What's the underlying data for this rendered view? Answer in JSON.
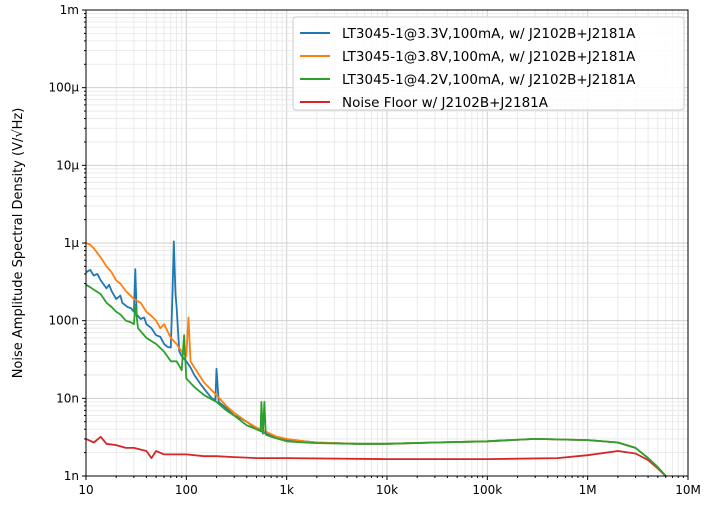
{
  "chart_data": {
    "type": "line",
    "title": "",
    "xlabel": "",
    "ylabel": "Noise Amplitude Spectral Density (V/√Hz)",
    "xscale": "log",
    "yscale": "log",
    "xlim": [
      10,
      10000000
    ],
    "ylim": [
      1e-09,
      0.001
    ],
    "grid": "major and minor",
    "legend_position": "top-right",
    "x_ticks": [
      {
        "value": 10,
        "label": "10"
      },
      {
        "value": 100,
        "label": "100"
      },
      {
        "value": 1000,
        "label": "1k"
      },
      {
        "value": 10000,
        "label": "10k"
      },
      {
        "value": 100000,
        "label": "100k"
      },
      {
        "value": 1000000,
        "label": "1M"
      },
      {
        "value": 10000000,
        "label": "10M"
      }
    ],
    "y_ticks": [
      {
        "value": 1e-09,
        "label": "1n"
      },
      {
        "value": 1e-08,
        "label": "10n"
      },
      {
        "value": 1e-07,
        "label": "100n"
      },
      {
        "value": 1e-06,
        "label": "1µ"
      },
      {
        "value": 1e-05,
        "label": "10µ"
      },
      {
        "value": 0.0001,
        "label": "100µ"
      },
      {
        "value": 0.001,
        "label": "1m"
      }
    ],
    "series": [
      {
        "name": "LT3045-1@3.3V,100mA, w/ J2102B+J2181A",
        "color": "#1f77b4",
        "points": [
          [
            10,
            4.2e-07
          ],
          [
            11,
            4.5e-07
          ],
          [
            12,
            3.8e-07
          ],
          [
            13,
            4e-07
          ],
          [
            14,
            3.3e-07
          ],
          [
            16,
            2.6e-07
          ],
          [
            17,
            2.9e-07
          ],
          [
            18,
            2.4e-07
          ],
          [
            20,
            1.9e-07
          ],
          [
            22,
            2.1e-07
          ],
          [
            23,
            1.7e-07
          ],
          [
            26,
            1.5e-07
          ],
          [
            28,
            1.45e-07
          ],
          [
            30,
            1.3e-07
          ],
          [
            31,
            4.6e-07
          ],
          [
            32,
            1.2e-07
          ],
          [
            35,
            1.05e-07
          ],
          [
            38,
            1.1e-07
          ],
          [
            40,
            9e-08
          ],
          [
            45,
            8e-08
          ],
          [
            50,
            6.5e-08
          ],
          [
            55,
            6.2e-08
          ],
          [
            60,
            5e-08
          ],
          [
            65,
            4.6e-08
          ],
          [
            70,
            4.5e-08
          ],
          [
            73,
            2.5e-07
          ],
          [
            75,
            1.05e-06
          ],
          [
            78,
            2.2e-07
          ],
          [
            80,
            1.5e-07
          ],
          [
            85,
            4e-08
          ],
          [
            90,
            3.5e-08
          ],
          [
            100,
            3e-08
          ],
          [
            110,
            2.5e-08
          ],
          [
            120,
            2e-08
          ],
          [
            140,
            1.5e-08
          ],
          [
            160,
            1.2e-08
          ],
          [
            180,
            1e-08
          ],
          [
            195,
            9.5e-09
          ],
          [
            200,
            2.4e-08
          ],
          [
            210,
            9e-09
          ],
          [
            250,
            7.5e-09
          ],
          [
            300,
            6e-09
          ],
          [
            350,
            5.5e-09
          ],
          [
            400,
            5e-09
          ],
          [
            500,
            4e-09
          ],
          [
            600,
            3.6e-09
          ],
          [
            700,
            3.3e-09
          ],
          [
            800,
            3.1e-09
          ],
          [
            1000,
            2.9e-09
          ],
          [
            1500,
            2.8e-09
          ],
          [
            2000,
            2.7e-09
          ],
          [
            5000,
            2.6e-09
          ],
          [
            10000,
            2.6e-09
          ],
          [
            30000,
            2.7e-09
          ],
          [
            100000,
            2.8e-09
          ],
          [
            300000,
            3e-09
          ],
          [
            1000000,
            2.9e-09
          ],
          [
            2000000,
            2.7e-09
          ],
          [
            3000000,
            2.3e-09
          ],
          [
            4000000,
            1.7e-09
          ],
          [
            5000000,
            1.3e-09
          ],
          [
            6000000,
            1e-09
          ]
        ]
      },
      {
        "name": "LT3045-1@3.8V,100mA, w/ J2102B+J2181A",
        "color": "#ff7f0e",
        "points": [
          [
            10,
            1e-06
          ],
          [
            11,
            9.5e-07
          ],
          [
            12,
            8.5e-07
          ],
          [
            14,
            6.5e-07
          ],
          [
            16,
            5e-07
          ],
          [
            18,
            4.2e-07
          ],
          [
            20,
            3.3e-07
          ],
          [
            22,
            3e-07
          ],
          [
            25,
            2.4e-07
          ],
          [
            30,
            1.9e-07
          ],
          [
            35,
            1.7e-07
          ],
          [
            40,
            1.3e-07
          ],
          [
            45,
            1.15e-07
          ],
          [
            50,
            1e-07
          ],
          [
            55,
            8e-08
          ],
          [
            60,
            9e-08
          ],
          [
            70,
            6e-08
          ],
          [
            80,
            5e-08
          ],
          [
            90,
            4e-08
          ],
          [
            100,
            3.5e-08
          ],
          [
            105,
            1.1e-07
          ],
          [
            110,
            3e-08
          ],
          [
            120,
            2.5e-08
          ],
          [
            150,
            1.6e-08
          ],
          [
            200,
            1.1e-08
          ],
          [
            250,
            8e-09
          ],
          [
            300,
            6.5e-09
          ],
          [
            400,
            5e-09
          ],
          [
            500,
            4.2e-09
          ],
          [
            600,
            3.8e-09
          ],
          [
            800,
            3.2e-09
          ],
          [
            1000,
            3e-09
          ],
          [
            1500,
            2.8e-09
          ],
          [
            2000,
            2.7e-09
          ],
          [
            5000,
            2.6e-09
          ],
          [
            10000,
            2.6e-09
          ],
          [
            30000,
            2.7e-09
          ],
          [
            100000,
            2.8e-09
          ],
          [
            300000,
            3e-09
          ],
          [
            1000000,
            2.9e-09
          ],
          [
            2000000,
            2.7e-09
          ],
          [
            3000000,
            2.3e-09
          ],
          [
            4000000,
            1.7e-09
          ],
          [
            5000000,
            1.3e-09
          ],
          [
            6000000,
            1e-09
          ]
        ]
      },
      {
        "name": "LT3045-1@4.2V,100mA, w/ J2102B+J2181A",
        "color": "#2ca02c",
        "points": [
          [
            10,
            2.9e-07
          ],
          [
            11,
            2.7e-07
          ],
          [
            12,
            2.5e-07
          ],
          [
            14,
            2.2e-07
          ],
          [
            16,
            1.7e-07
          ],
          [
            18,
            1.5e-07
          ],
          [
            20,
            1.3e-07
          ],
          [
            22,
            1.2e-07
          ],
          [
            25,
            1e-07
          ],
          [
            28,
            9.5e-08
          ],
          [
            30,
            9e-08
          ],
          [
            31,
            1.6e-07
          ],
          [
            33,
            8e-08
          ],
          [
            40,
            6e-08
          ],
          [
            50,
            5e-08
          ],
          [
            60,
            4e-08
          ],
          [
            70,
            3e-08
          ],
          [
            80,
            3e-08
          ],
          [
            90,
            2.3e-08
          ],
          [
            95,
            6.5e-08
          ],
          [
            100,
            1.8e-08
          ],
          [
            120,
            1.4e-08
          ],
          [
            150,
            1.1e-08
          ],
          [
            200,
            9e-09
          ],
          [
            250,
            7e-09
          ],
          [
            300,
            6e-09
          ],
          [
            400,
            4.5e-09
          ],
          [
            550,
            3.8e-09
          ],
          [
            560,
            9e-09
          ],
          [
            580,
            3.5e-09
          ],
          [
            600,
            9e-09
          ],
          [
            620,
            3.4e-09
          ],
          [
            700,
            3.2e-09
          ],
          [
            1000,
            2.8e-09
          ],
          [
            1500,
            2.7e-09
          ],
          [
            2000,
            2.65e-09
          ],
          [
            5000,
            2.6e-09
          ],
          [
            10000,
            2.6e-09
          ],
          [
            30000,
            2.7e-09
          ],
          [
            100000,
            2.8e-09
          ],
          [
            300000,
            3e-09
          ],
          [
            1000000,
            2.9e-09
          ],
          [
            2000000,
            2.7e-09
          ],
          [
            3000000,
            2.3e-09
          ],
          [
            4000000,
            1.7e-09
          ],
          [
            5000000,
            1.3e-09
          ],
          [
            6000000,
            1e-09
          ]
        ]
      },
      {
        "name": "Noise Floor w/ J2102B+J2181A",
        "color": "#d62728",
        "points": [
          [
            10,
            3e-09
          ],
          [
            12,
            2.7e-09
          ],
          [
            14,
            3.2e-09
          ],
          [
            16,
            2.6e-09
          ],
          [
            20,
            2.5e-09
          ],
          [
            25,
            2.3e-09
          ],
          [
            30,
            2.3e-09
          ],
          [
            40,
            2.1e-09
          ],
          [
            45,
            1.7e-09
          ],
          [
            50,
            2.1e-09
          ],
          [
            60,
            1.9e-09
          ],
          [
            80,
            1.9e-09
          ],
          [
            100,
            1.9e-09
          ],
          [
            150,
            1.8e-09
          ],
          [
            200,
            1.8e-09
          ],
          [
            300,
            1.75e-09
          ],
          [
            500,
            1.7e-09
          ],
          [
            1000,
            1.7e-09
          ],
          [
            10000,
            1.65e-09
          ],
          [
            100000,
            1.65e-09
          ],
          [
            500000,
            1.7e-09
          ],
          [
            1000000,
            1.85e-09
          ],
          [
            2000000,
            2.1e-09
          ],
          [
            3000000,
            1.95e-09
          ],
          [
            4000000,
            1.6e-09
          ],
          [
            5000000,
            1.25e-09
          ],
          [
            6000000,
            1e-09
          ]
        ]
      }
    ]
  }
}
